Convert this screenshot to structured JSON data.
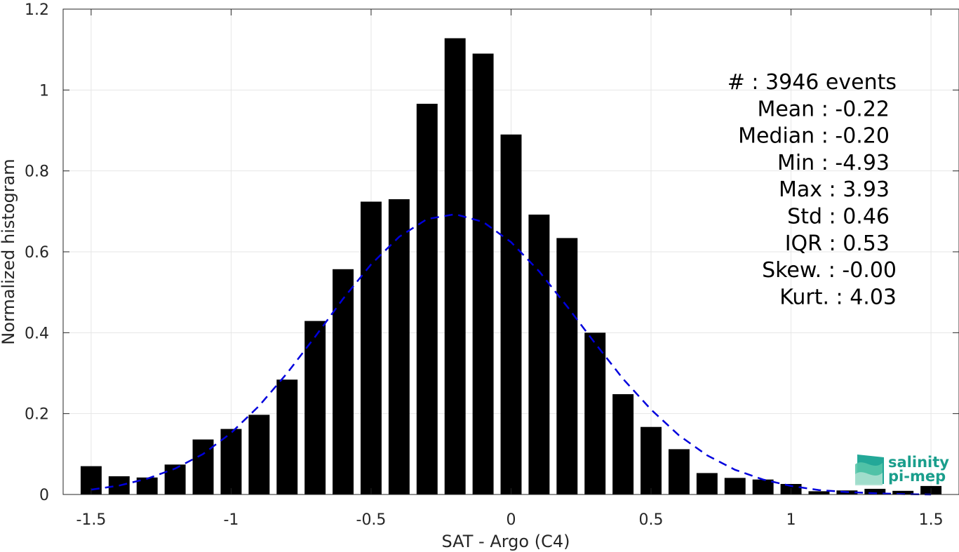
{
  "chart_data": {
    "type": "bar",
    "title": "",
    "xlabel": "SAT - Argo (C4)",
    "ylabel": "Normalized histogram",
    "xlim": [
      -1.6,
      1.6
    ],
    "ylim": [
      0,
      1.2
    ],
    "xticks": [
      -1.5,
      -1,
      -0.5,
      0,
      0.5,
      1,
      1.5
    ],
    "xtick_labels": [
      "-1.5",
      "-1",
      "-0.5",
      "0",
      "0.5",
      "1",
      "1.5"
    ],
    "yticks": [
      0,
      0.2,
      0.4,
      0.6,
      0.8,
      1,
      1.2
    ],
    "ytick_labels": [
      "0",
      "0.2",
      "0.4",
      "0.6",
      "0.8",
      "1",
      "1.2"
    ],
    "grid": true,
    "bar_color": "#000000",
    "fit_color": "#0000dd",
    "bar_width": 0.075,
    "x": [
      -1.5,
      -1.4,
      -1.3,
      -1.2,
      -1.1,
      -1.0,
      -0.9,
      -0.8,
      -0.7,
      -0.6,
      -0.5,
      -0.4,
      -0.3,
      -0.2,
      -0.1,
      0.0,
      0.1,
      0.2,
      0.3,
      0.4,
      0.5,
      0.6,
      0.7,
      0.8,
      0.9,
      1.0,
      1.1,
      1.2,
      1.3,
      1.4,
      1.5
    ],
    "values": [
      0.07,
      0.045,
      0.042,
      0.074,
      0.136,
      0.162,
      0.197,
      0.284,
      0.429,
      0.557,
      0.724,
      0.73,
      0.966,
      1.128,
      1.09,
      0.89,
      0.692,
      0.634,
      0.4,
      0.248,
      0.167,
      0.112,
      0.053,
      0.041,
      0.037,
      0.026,
      0.008,
      0.01,
      0.014,
      0.009,
      0.021
    ],
    "fit": {
      "style": "dashed",
      "x": [
        -1.5,
        -1.4,
        -1.3,
        -1.2,
        -1.1,
        -1.0,
        -0.9,
        -0.8,
        -0.7,
        -0.6,
        -0.5,
        -0.4,
        -0.3,
        -0.2,
        -0.1,
        0.0,
        0.1,
        0.2,
        0.3,
        0.4,
        0.5,
        0.6,
        0.7,
        0.8,
        0.9,
        1.0,
        1.1,
        1.2,
        1.3,
        1.4,
        1.5
      ],
      "y": [
        0.012,
        0.022,
        0.039,
        0.064,
        0.1,
        0.152,
        0.219,
        0.3,
        0.39,
        0.484,
        0.569,
        0.637,
        0.681,
        0.693,
        0.674,
        0.624,
        0.552,
        0.465,
        0.374,
        0.286,
        0.21,
        0.146,
        0.097,
        0.061,
        0.037,
        0.021,
        0.011,
        0.006,
        0.003,
        0.001,
        0.0
      ]
    },
    "stats_lines": [
      "#  : 3946 events",
      "Mean : -0.22",
      "Median : -0.20",
      "Min : -4.93",
      "Max : 3.93",
      "Std : 0.46",
      "IQR : 0.53",
      "Skew. : -0.00",
      "Kurt. : 4.03"
    ],
    "logo": {
      "line1": "salinity",
      "line2": "pi-mep",
      "color": "#1a9e8c"
    }
  }
}
